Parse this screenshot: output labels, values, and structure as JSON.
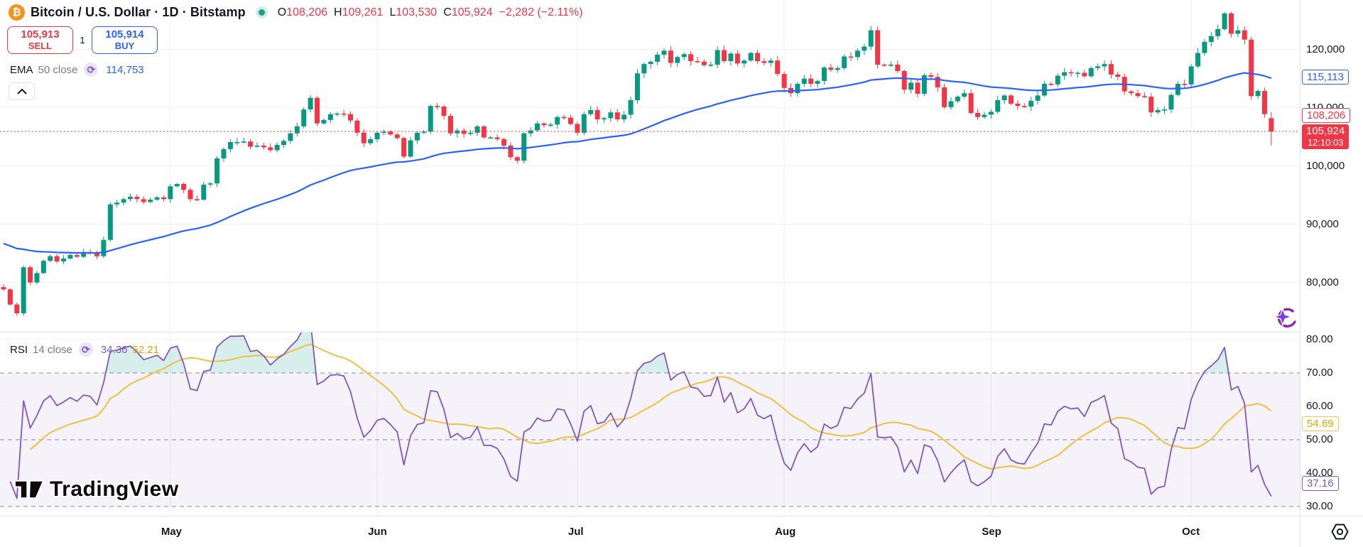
{
  "header": {
    "symbol_title": "Bitcoin / U.S. Dollar · 1D · Bitstamp",
    "ohlc": {
      "o_label": "O",
      "o": "108,206",
      "h_label": "H",
      "h": "109,261",
      "l_label": "L",
      "l": "103,530",
      "c_label": "C",
      "c": "105,924"
    },
    "change": "−2,282 (−2.11%)"
  },
  "trade_buttons": {
    "sell_price": "105,913",
    "sell_label": "SELL",
    "spread": "1",
    "buy_price": "105,914",
    "buy_label": "BUY"
  },
  "ema_legend": {
    "name": "EMA",
    "params": "50 close",
    "value": "114,753"
  },
  "rsi_legend": {
    "name": "RSI",
    "params": "14 close",
    "value_rsi": "34.36",
    "value_ma": "52.21"
  },
  "price_axis": {
    "ticks": [
      {
        "label": "120,000",
        "value": 120000
      },
      {
        "label": "110,000",
        "value": 110000
      },
      {
        "label": "100,000",
        "value": 100000
      },
      {
        "label": "90,000",
        "value": 90000
      },
      {
        "label": "80,000",
        "value": 80000
      }
    ],
    "ema_badge": "115,113",
    "open_badge": "108,206",
    "last_badge": "105,924",
    "countdown": "12:10:03"
  },
  "rsi_axis": {
    "ticks": [
      {
        "label": "80.00",
        "value": 80
      },
      {
        "label": "70.00",
        "value": 70
      },
      {
        "label": "60.00",
        "value": 60
      },
      {
        "label": "50.00",
        "value": 50
      },
      {
        "label": "40.00",
        "value": 40
      },
      {
        "label": "30.00",
        "value": 30
      }
    ],
    "ma_badge": "54.69",
    "rsi_badge": "37.16"
  },
  "watermark": "TradingView",
  "icons": {
    "bitcoin_glyph": "₿",
    "refresh_glyph": "⟳"
  },
  "colors": {
    "up": "#089981",
    "down": "#F23645",
    "ema": "#2962FF",
    "rsi_line": "#7E57C2",
    "rsi_ma": "#F0C040",
    "rsi_band": "rgba(126,87,194,0.08)",
    "grid": "#eef0f3",
    "level_dash": "#787B86",
    "last_price_line": "#F23645",
    "overbought_fill": "rgba(8,153,129,0.16)",
    "oversold_fill": "rgba(242,54,69,0.12)"
  },
  "chart_data": {
    "type": "candlestick",
    "title": "Bitcoin / U.S. Dollar · 1D · Bitstamp",
    "x_unit": "day",
    "range_approx": "Apr 6 – Oct 13",
    "months": [
      {
        "label": "May",
        "index": 25
      },
      {
        "label": "Jun",
        "index": 56
      },
      {
        "label": "Jul",
        "index": 86
      },
      {
        "label": "Aug",
        "index": 117
      },
      {
        "label": "Sep",
        "index": 148
      },
      {
        "label": "Oct",
        "index": 178
      }
    ],
    "ylim": [
      72000,
      128500
    ],
    "y_ticks": [
      80000,
      90000,
      100000,
      110000,
      120000
    ],
    "ohlc_legend": {
      "open": 108206,
      "high": 109261,
      "low": 103530,
      "close": 105924,
      "change": -2282,
      "change_pct": -2.11
    },
    "overlays": [
      {
        "name": "EMA 50",
        "color": "#2962FF",
        "last_value": 114753,
        "axis_value": 115113
      }
    ],
    "closes": [
      78800,
      76200,
      74700,
      82600,
      80000,
      81600,
      83700,
      84500,
      83600,
      84100,
      84700,
      84400,
      85200,
      85100,
      84500,
      87300,
      93400,
      93700,
      94300,
      94700,
      94300,
      93800,
      94200,
      94600,
      94300,
      96500,
      96900,
      95900,
      94300,
      94200,
      96800,
      97000,
      101300,
      102900,
      104100,
      104100,
      104200,
      103300,
      103500,
      103200,
      102700,
      103600,
      104300,
      105600,
      106800,
      109700,
      111700,
      107300,
      107900,
      108900,
      109000,
      108900,
      107800,
      105700,
      103900,
      104600,
      105700,
      105900,
      105400,
      104800,
      101600,
      104400,
      105700,
      105900,
      110300,
      110200,
      108600,
      105600,
      106100,
      105500,
      105700,
      106800,
      104900,
      104900,
      104600,
      103500,
      101500,
      100900,
      105600,
      106100,
      107300,
      107000,
      107100,
      108400,
      108300,
      107200,
      105700,
      108900,
      109600,
      108000,
      108200,
      109200,
      108000,
      108800,
      111300,
      115900,
      117500,
      117900,
      119100,
      119800,
      117700,
      118700,
      119200,
      118000,
      117900,
      117300,
      117400,
      119900,
      118000,
      119300,
      117600,
      118100,
      119400,
      118000,
      117700,
      118100,
      115800,
      113400,
      112500,
      114100,
      115000,
      114100,
      114600,
      116900,
      116500,
      116800,
      118800,
      118700,
      119800,
      120500,
      123300,
      117400,
      117300,
      117400,
      116300,
      113100,
      114300,
      112400,
      115600,
      115300,
      113500,
      110100,
      111100,
      111900,
      112500,
      109100,
      108400,
      108800,
      109300,
      111300,
      112100,
      110700,
      110300,
      110200,
      111200,
      112100,
      114100,
      114000,
      115500,
      116100,
      115900,
      116000,
      115400,
      116800,
      117100,
      117500,
      115700,
      115300,
      112800,
      112500,
      112000,
      111900,
      109200,
      109600,
      109700,
      112200,
      114100,
      114000,
      117100,
      119400,
      121300,
      122300,
      123500,
      126200,
      122700,
      123300,
      121700,
      112000,
      112900,
      108900,
      105924
    ],
    "sub_chart": {
      "type": "line",
      "name": "RSI 14",
      "last_value": 34.36,
      "ma_last_value": 52.21,
      "axis_rsi_value": 37.16,
      "axis_ma_value": 54.69,
      "levels": [
        70,
        50,
        30
      ],
      "ylim": [
        25,
        82
      ],
      "y_ticks": [
        80,
        70,
        60,
        50,
        40,
        30
      ]
    }
  }
}
